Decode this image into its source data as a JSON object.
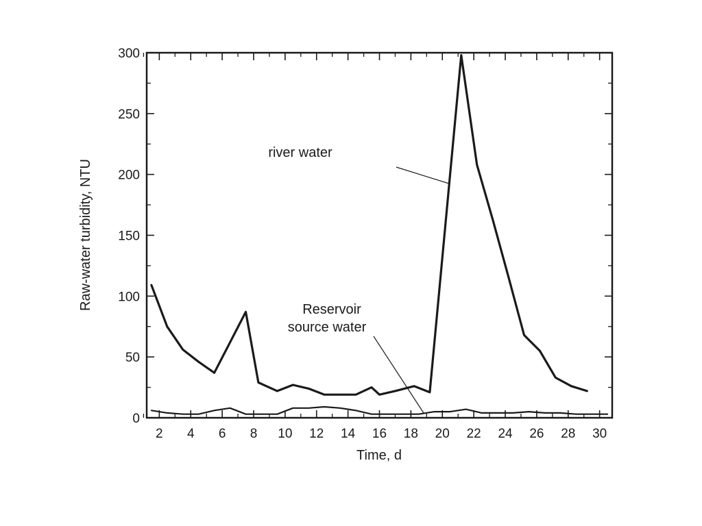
{
  "chart_data": {
    "type": "line",
    "title": "",
    "xlabel": "Time, d",
    "ylabel": "Raw-water turbidity, NTU",
    "xlim": [
      1.2,
      30.8
    ],
    "ylim": [
      0,
      300
    ],
    "x_ticks": [
      2,
      4,
      6,
      8,
      10,
      12,
      14,
      16,
      18,
      20,
      22,
      24,
      26,
      28,
      30
    ],
    "x_minor_ticks": [
      1,
      3,
      5,
      7,
      9,
      11,
      13,
      15,
      17,
      19,
      21,
      23,
      25,
      27,
      29
    ],
    "y_ticks": [
      0,
      50,
      100,
      150,
      200,
      250,
      300
    ],
    "grid": false,
    "legend": "none",
    "series": [
      {
        "name": "river water",
        "color": "#1a1a1a",
        "x": [
          1.5,
          2.5,
          3.5,
          4.5,
          5.5,
          6.5,
          7.5,
          8.3,
          9.5,
          10.5,
          11.5,
          12.5,
          13.5,
          14.5,
          15.5,
          16,
          17,
          18.2,
          19.2,
          21.2,
          22.2,
          23.2,
          24.2,
          25.2,
          26.2,
          27.2,
          28.2,
          29.2
        ],
        "values": [
          109,
          75,
          56,
          46,
          37,
          62,
          87,
          29,
          22,
          27,
          24,
          19,
          19,
          19,
          25,
          19,
          22,
          26,
          21,
          298,
          208,
          163,
          116,
          68,
          55,
          33,
          26,
          22
        ]
      },
      {
        "name": "Reservoir source water",
        "color": "#1a1a1a",
        "x": [
          1.5,
          2.5,
          3.5,
          4.5,
          5.5,
          6.5,
          7.5,
          8.5,
          9.5,
          10.5,
          11.5,
          12.5,
          13.5,
          14.5,
          15.5,
          16.5,
          17.5,
          18.5,
          19.5,
          20.5,
          21.5,
          22.5,
          23.5,
          24.5,
          25.5,
          26.5,
          27.5,
          28.5,
          29.5,
          30.5
        ],
        "values": [
          6,
          4,
          3,
          3,
          6,
          8,
          3,
          3,
          3,
          8,
          8,
          9,
          8,
          6,
          3,
          3,
          3,
          3,
          5,
          5,
          7,
          4,
          4,
          4,
          5,
          4,
          4,
          3,
          3,
          3
        ]
      }
    ],
    "annotations": [
      {
        "label": "river water",
        "lines": [
          "river water"
        ]
      },
      {
        "label": "Reservoir source water",
        "lines": [
          "Reservoir",
          "source water"
        ]
      }
    ]
  }
}
